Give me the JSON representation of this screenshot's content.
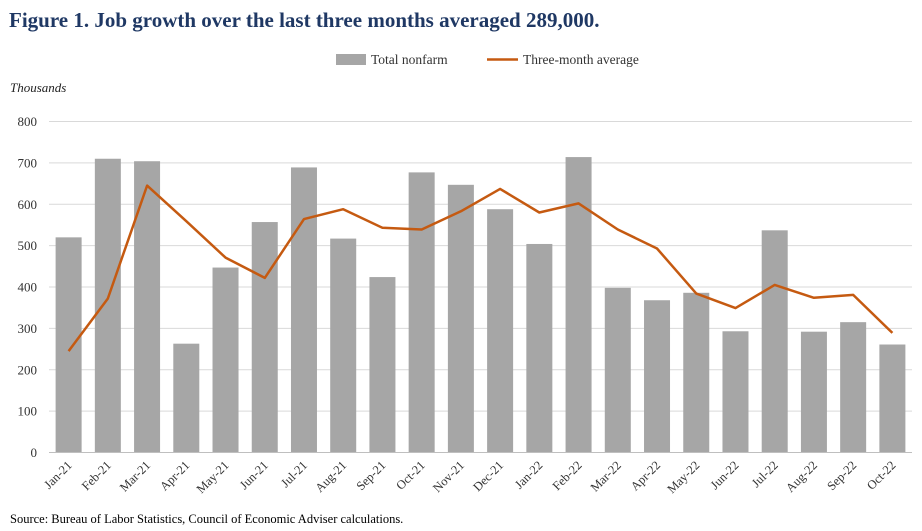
{
  "title": "Figure 1. Job growth over the last three months averaged 289,000.",
  "source": "Source: Bureau of Labor Statistics, Council of Economic Adviser calculations.",
  "colors": {
    "bar": "#a6a6a6",
    "line": "#c55a11",
    "title": "#1f3864",
    "grid": "#d9d9d9"
  },
  "chart_data": {
    "type": "bar",
    "title": "Figure 1. Job growth over the last three months averaged 289,000.",
    "ylabel": "Thousands",
    "xlabel": "",
    "ylim": [
      0,
      800
    ],
    "yticks": [
      0,
      100,
      200,
      300,
      400,
      500,
      600,
      700,
      800
    ],
    "grid": true,
    "legend_position": "top-center",
    "categories": [
      "Jan-21",
      "Feb-21",
      "Mar-21",
      "Apr-21",
      "May-21",
      "Jun-21",
      "Jul-21",
      "Aug-21",
      "Sep-21",
      "Oct-21",
      "Nov-21",
      "Dec-21",
      "Jan-22",
      "Feb-22",
      "Mar-22",
      "Apr-22",
      "May-22",
      "Jun-22",
      "Jul-22",
      "Aug-22",
      "Sep-22",
      "Oct-22"
    ],
    "series": [
      {
        "name": "Total nonfarm",
        "type": "bar",
        "values": [
          520,
          710,
          704,
          263,
          447,
          557,
          689,
          517,
          424,
          677,
          647,
          588,
          504,
          714,
          398,
          368,
          386,
          293,
          537,
          292,
          315,
          261
        ]
      },
      {
        "name": "Three-month average",
        "type": "line",
        "values": [
          245,
          372,
          645,
          559,
          471,
          422,
          564,
          588,
          543,
          539,
          583,
          637,
          580,
          602,
          539,
          493,
          384,
          349,
          405,
          374,
          381,
          289
        ]
      }
    ]
  }
}
